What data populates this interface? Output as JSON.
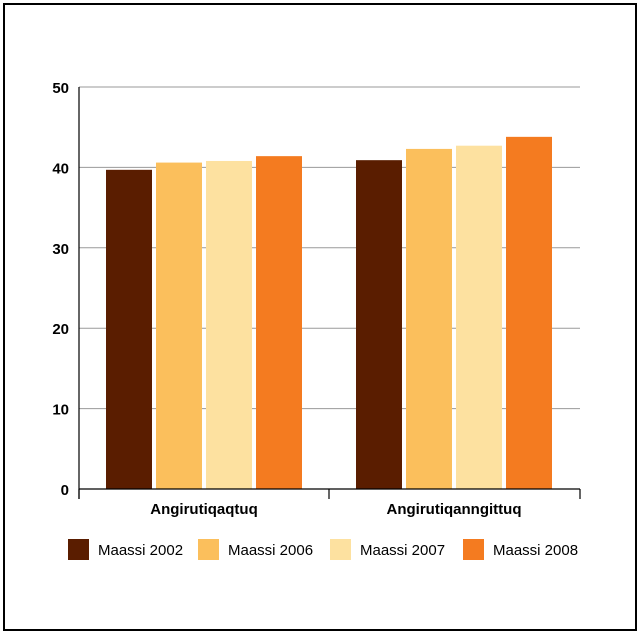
{
  "chart_data": {
    "type": "bar",
    "categories": [
      "Angirutiqaqtuq",
      "Angirutiqanngittuq"
    ],
    "series": [
      {
        "name": "Maassi 2002",
        "color": "#5a1d00",
        "values": [
          39.7,
          40.9
        ]
      },
      {
        "name": "Maassi 2006",
        "color": "#fbbf5c",
        "values": [
          40.6,
          42.3
        ]
      },
      {
        "name": "Maassi 2007",
        "color": "#fde1a0",
        "values": [
          40.8,
          42.7
        ]
      },
      {
        "name": "Maassi 2008",
        "color": "#f47b20",
        "values": [
          41.4,
          43.8
        ]
      }
    ],
    "y_ticks": [
      "0",
      "10",
      "20",
      "30",
      "40",
      "50"
    ],
    "ylim": [
      0,
      50
    ],
    "grid": true,
    "legend_position": "bottom"
  }
}
